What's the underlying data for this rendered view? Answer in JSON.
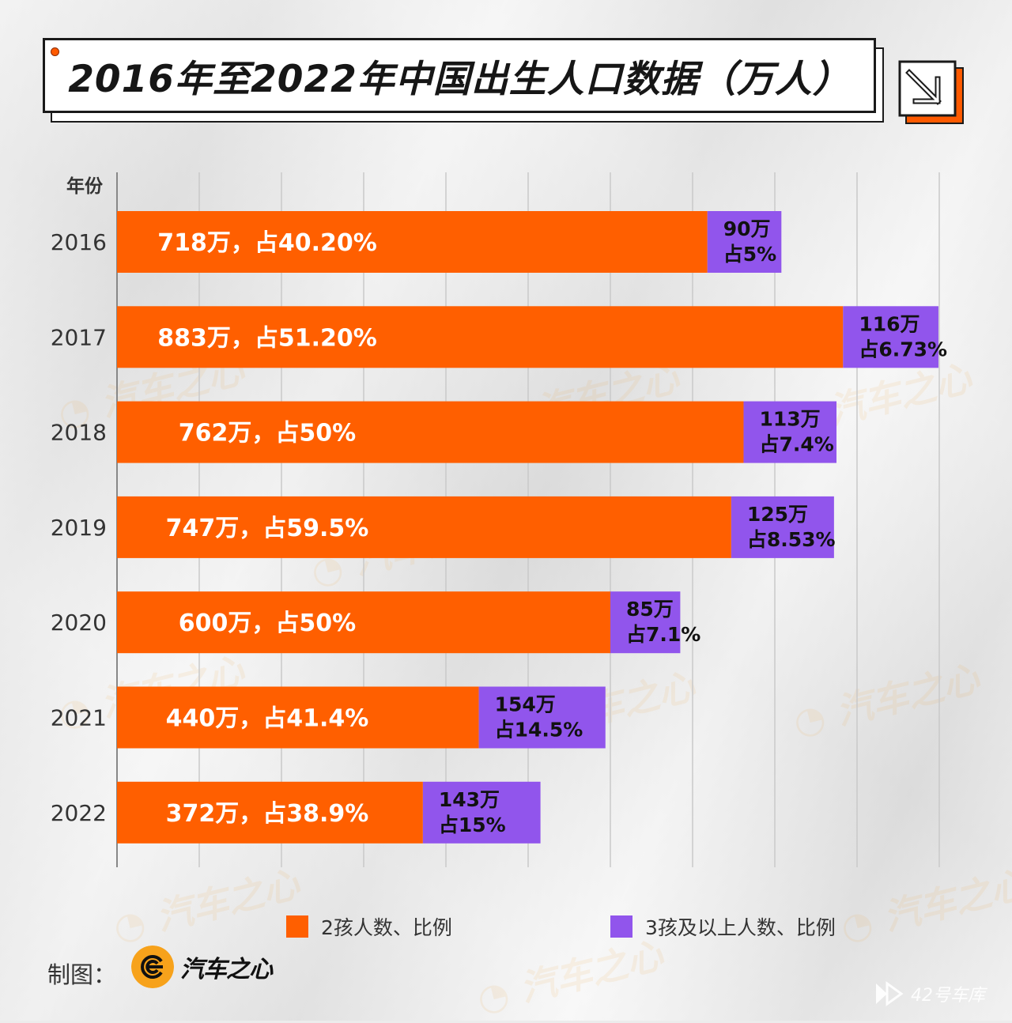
{
  "title": "2016年至2022年中国出生人口数据（万人）",
  "colors": {
    "two_child": "#ff5f00",
    "three_plus": "#9155ec",
    "text_dark": "#1a1a1a",
    "grid": "#cfcfcf",
    "accent": "#ff5a00"
  },
  "chart_data": {
    "type": "bar",
    "orientation": "horizontal",
    "stacked": true,
    "y_axis_title": "年份",
    "categories": [
      "2016",
      "2017",
      "2018",
      "2019",
      "2020",
      "2021",
      "2022"
    ],
    "series": [
      {
        "name": "2孩人数、比例",
        "values": [
          718,
          883,
          762,
          747,
          600,
          440,
          372
        ],
        "labels": [
          "718万，占40.20%",
          "883万，占51.20%",
          "762万，占50%",
          "747万，占59.5%",
          "600万，占50%",
          "440万，占41.4%",
          "372万，占38.9%"
        ]
      },
      {
        "name": "3孩及以上人数、比例",
        "values": [
          90,
          116,
          113,
          125,
          85,
          154,
          143
        ],
        "labels_line1": [
          "90万",
          "116万",
          "113万",
          "125万",
          "85万",
          "154万",
          "143万"
        ],
        "labels_line2": [
          "占5%",
          "占6.73%",
          "占7.4%",
          "占8.53%",
          "占7.1%",
          "占14.5%",
          "占15%"
        ]
      }
    ],
    "xlim": [
      0,
      1000
    ],
    "grid": true,
    "x_tick_labels_shown": false,
    "legend_position": "bottom"
  },
  "credit": {
    "label": "制图：",
    "logo_text": "汽车之心"
  },
  "watermark": {
    "text": "42号车库"
  }
}
